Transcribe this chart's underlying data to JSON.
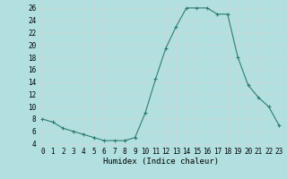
{
  "x": [
    0,
    1,
    2,
    3,
    4,
    5,
    6,
    7,
    8,
    9,
    10,
    11,
    12,
    13,
    14,
    15,
    16,
    17,
    18,
    19,
    20,
    21,
    22,
    23
  ],
  "y": [
    8,
    7.5,
    6.5,
    6,
    5.5,
    5,
    4.5,
    4.5,
    4.5,
    5,
    9,
    14.5,
    19.5,
    23,
    26,
    26,
    26,
    25,
    25,
    18,
    13.5,
    11.5,
    10,
    7
  ],
  "xlabel": "Humidex (Indice chaleur)",
  "xlim": [
    -0.5,
    23.5
  ],
  "ylim": [
    3.5,
    27
  ],
  "yticks": [
    4,
    6,
    8,
    10,
    12,
    14,
    16,
    18,
    20,
    22,
    24,
    26
  ],
  "xticks": [
    0,
    1,
    2,
    3,
    4,
    5,
    6,
    7,
    8,
    9,
    10,
    11,
    12,
    13,
    14,
    15,
    16,
    17,
    18,
    19,
    20,
    21,
    22,
    23
  ],
  "line_color": "#2e7d6e",
  "marker": "+",
  "bg_color": "#b2e0e0",
  "grid_color": "#c8d8d8",
  "tick_fontsize": 5.5,
  "label_fontsize": 6.5
}
